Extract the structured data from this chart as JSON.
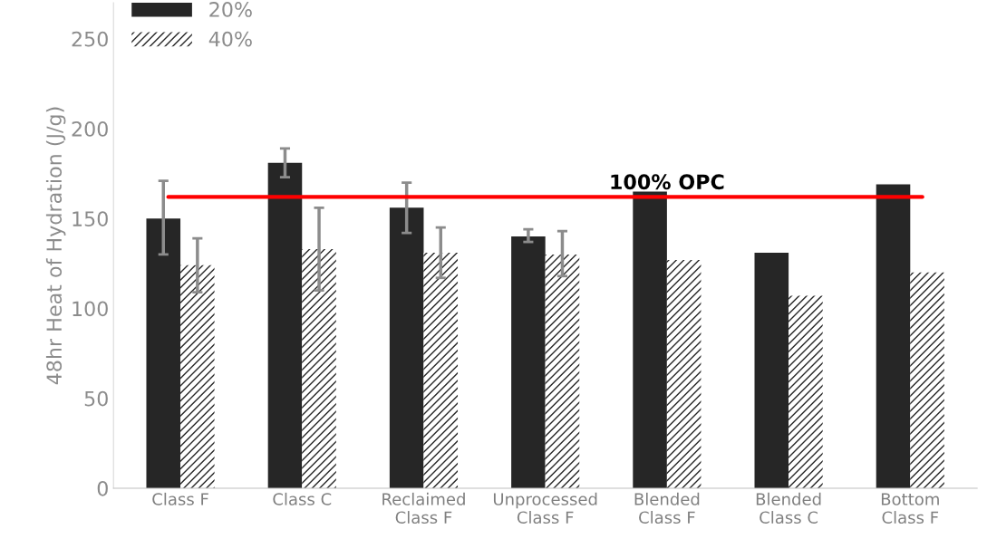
{
  "chart_data": {
    "type": "bar",
    "ylabel": "48hr Heat of Hydration (J/g)",
    "categories": [
      "Class F",
      "Class C",
      "Reclaimed\nClass F",
      "Unprocessed\nClass F",
      "Blended\nClass F",
      "Blended\nClass C",
      "Bottom\nClass F"
    ],
    "series": [
      {
        "name": "20%",
        "color": "#262626",
        "values": [
          150,
          181,
          156,
          140,
          165,
          131,
          169
        ],
        "errors": [
          [
            130,
            171
          ],
          [
            173,
            189
          ],
          [
            142,
            170
          ],
          [
            137,
            144
          ],
          null,
          null,
          null
        ]
      },
      {
        "name": "40%",
        "color": "#262626",
        "values": [
          124,
          133,
          131,
          130,
          127,
          107,
          120
        ],
        "errors": [
          [
            109,
            139
          ],
          [
            110,
            156
          ],
          [
            117,
            145
          ],
          [
            118,
            143
          ],
          null,
          null,
          null
        ]
      }
    ],
    "ylim": [
      0,
      270
    ],
    "yticks": [
      0,
      50,
      100,
      150,
      200,
      250
    ],
    "ref_lines": [
      {
        "axis": "y",
        "value": 162,
        "label": "100% OPC",
        "color": "#ff0000"
      }
    ],
    "legend": "top left",
    "grid": false
  }
}
